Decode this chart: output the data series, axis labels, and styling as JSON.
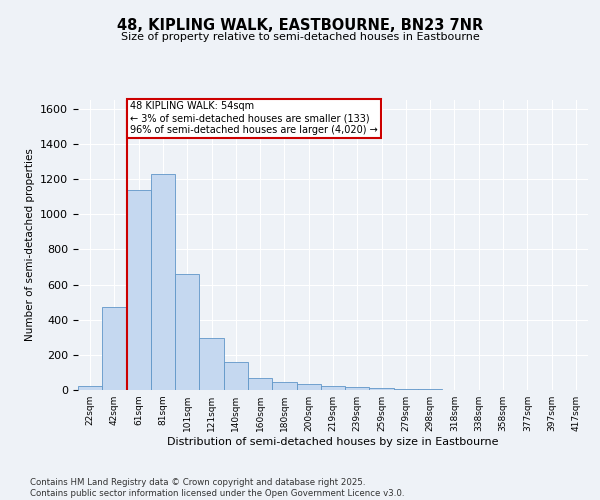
{
  "title": "48, KIPLING WALK, EASTBOURNE, BN23 7NR",
  "subtitle": "Size of property relative to semi-detached houses in Eastbourne",
  "xlabel": "Distribution of semi-detached houses by size in Eastbourne",
  "ylabel": "Number of semi-detached properties",
  "categories": [
    "22sqm",
    "42sqm",
    "61sqm",
    "81sqm",
    "101sqm",
    "121sqm",
    "140sqm",
    "160sqm",
    "180sqm",
    "200sqm",
    "219sqm",
    "239sqm",
    "259sqm",
    "279sqm",
    "298sqm",
    "318sqm",
    "338sqm",
    "358sqm",
    "377sqm",
    "397sqm",
    "417sqm"
  ],
  "values": [
    25,
    470,
    1140,
    1230,
    660,
    295,
    160,
    70,
    45,
    35,
    25,
    15,
    10,
    7,
    4,
    2,
    1,
    1,
    0,
    0,
    0
  ],
  "bar_color": "#c5d8f0",
  "bar_edge_color": "#6096c8",
  "vline_color": "#cc0000",
  "vline_x": 1.5,
  "annotation_title": "48 KIPLING WALK: 54sqm",
  "annotation_line1": "← 3% of semi-detached houses are smaller (133)",
  "annotation_line2": "96% of semi-detached houses are larger (4,020) →",
  "annotation_box_facecolor": "#ffffff",
  "annotation_box_edgecolor": "#cc0000",
  "ylim": [
    0,
    1650
  ],
  "background_color": "#eef2f7",
  "footer_line1": "Contains HM Land Registry data © Crown copyright and database right 2025.",
  "footer_line2": "Contains public sector information licensed under the Open Government Licence v3.0."
}
